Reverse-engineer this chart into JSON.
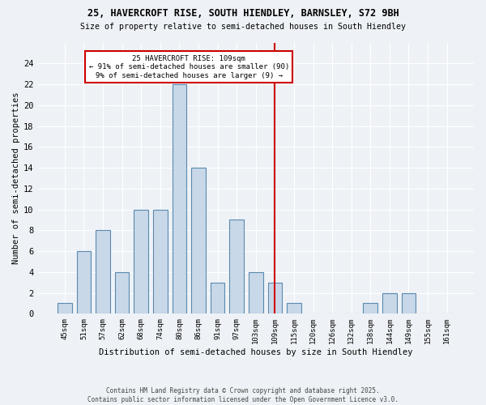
{
  "title1": "25, HAVERCROFT RISE, SOUTH HIENDLEY, BARNSLEY, S72 9BH",
  "title2": "Size of property relative to semi-detached houses in South Hiendley",
  "xlabel": "Distribution of semi-detached houses by size in South Hiendley",
  "ylabel": "Number of semi-detached properties",
  "categories": [
    "45sqm",
    "51sqm",
    "57sqm",
    "62sqm",
    "68sqm",
    "74sqm",
    "80sqm",
    "86sqm",
    "91sqm",
    "97sqm",
    "103sqm",
    "109sqm",
    "115sqm",
    "120sqm",
    "126sqm",
    "132sqm",
    "138sqm",
    "144sqm",
    "149sqm",
    "155sqm",
    "161sqm"
  ],
  "values": [
    1,
    6,
    8,
    4,
    10,
    10,
    22,
    14,
    3,
    9,
    4,
    3,
    1,
    0,
    0,
    0,
    1,
    2,
    2,
    0,
    0
  ],
  "bar_color": "#c8d8e8",
  "bar_edge_color": "#5a8ab0",
  "vline_x_index": 11,
  "annotation_title": "25 HAVERCROFT RISE: 109sqm",
  "annotation_line1": "← 91% of semi-detached houses are smaller (90)",
  "annotation_line2": "9% of semi-detached houses are larger (9) →",
  "vline_color": "#cc0000",
  "annotation_box_color": "#ffffff",
  "annotation_box_edge_color": "#cc0000",
  "ylim": [
    0,
    26
  ],
  "yticks": [
    0,
    2,
    4,
    6,
    8,
    10,
    12,
    14,
    16,
    18,
    20,
    22,
    24
  ],
  "footnote": "Contains HM Land Registry data © Crown copyright and database right 2025.\nContains public sector information licensed under the Open Government Licence v3.0.",
  "bg_color": "#eef2f6",
  "grid_color": "#ffffff"
}
